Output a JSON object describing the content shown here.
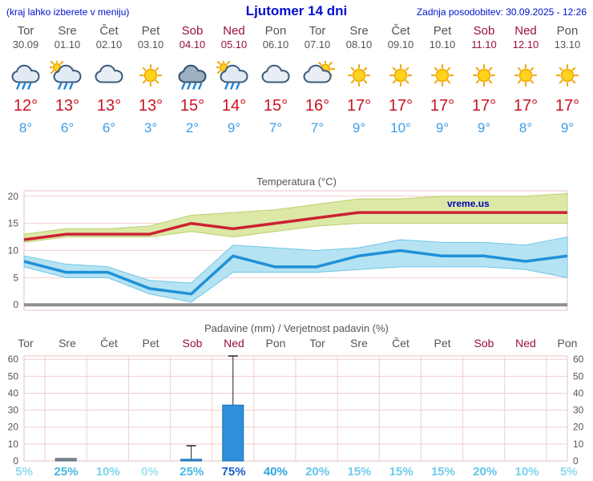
{
  "header": {
    "left_hint": "(kraj lahko izberete v meniju)",
    "title": "Ljutomer 14 dni",
    "last_update": "Zadnja posodobitev: 30.09.2025 - 12:26"
  },
  "colors": {
    "link_blue": "#0011cc",
    "weekday": "#555555",
    "weekend": "#991040",
    "tmax": "#cc1122",
    "tmin": "#3d9de8",
    "bar_blue": "#2e8fdd"
  },
  "days": [
    {
      "name": "Tor",
      "date": "30.09",
      "weekend": false,
      "icon": "rain",
      "tmax": "12°",
      "tmin": "8°"
    },
    {
      "name": "Sre",
      "date": "01.10",
      "weekend": false,
      "icon": "sun-rain",
      "tmax": "13°",
      "tmin": "6°"
    },
    {
      "name": "Čet",
      "date": "02.10",
      "weekend": false,
      "icon": "cloudy",
      "tmax": "13°",
      "tmin": "6°"
    },
    {
      "name": "Pet",
      "date": "03.10",
      "weekend": false,
      "icon": "sunny",
      "tmax": "13°",
      "tmin": "3°"
    },
    {
      "name": "Sob",
      "date": "04.10",
      "weekend": true,
      "icon": "heavy-rain",
      "tmax": "15°",
      "tmin": "2°"
    },
    {
      "name": "Ned",
      "date": "05.10",
      "weekend": true,
      "icon": "sun-rain",
      "tmax": "14°",
      "tmin": "9°"
    },
    {
      "name": "Pon",
      "date": "06.10",
      "weekend": false,
      "icon": "cloudy",
      "tmax": "15°",
      "tmin": "7°"
    },
    {
      "name": "Tor",
      "date": "07.10",
      "weekend": false,
      "icon": "partly-cloudy",
      "tmax": "16°",
      "tmin": "7°"
    },
    {
      "name": "Sre",
      "date": "08.10",
      "weekend": false,
      "icon": "sunny",
      "tmax": "17°",
      "tmin": "9°"
    },
    {
      "name": "Čet",
      "date": "09.10",
      "weekend": false,
      "icon": "sunny",
      "tmax": "17°",
      "tmin": "10°"
    },
    {
      "name": "Pet",
      "date": "10.10",
      "weekend": false,
      "icon": "sunny",
      "tmax": "17°",
      "tmin": "9°"
    },
    {
      "name": "Sob",
      "date": "11.10",
      "weekend": true,
      "icon": "sunny",
      "tmax": "17°",
      "tmin": "9°"
    },
    {
      "name": "Ned",
      "date": "12.10",
      "weekend": true,
      "icon": "sunny",
      "tmax": "17°",
      "tmin": "8°"
    },
    {
      "name": "Pon",
      "date": "13.10",
      "weekend": false,
      "icon": "sunny",
      "tmax": "17°",
      "tmin": "9°"
    }
  ],
  "chart_data": [
    {
      "type": "line",
      "title": "Temperatura (°C)",
      "x_categories": [
        "Tor 30.09",
        "Sre 01.10",
        "Čet 02.10",
        "Pet 03.10",
        "Sob 04.10",
        "Ned 05.10",
        "Pon 06.10",
        "Tor 07.10",
        "Sre 08.10",
        "Čet 09.10",
        "Pet 10.10",
        "Sob 11.10",
        "Ned 12.10",
        "Pon 13.10"
      ],
      "ylim": [
        -1,
        21
      ],
      "yticks": [
        0,
        5,
        10,
        15,
        20
      ],
      "grid": true,
      "grid_color": "#f3cdcd",
      "border_color": "#e9c0c0",
      "baseline_color": "#8f8f8f",
      "watermark": "vreme.us",
      "series": [
        {
          "name": "tmax",
          "color": "#cc2233",
          "values": [
            12,
            13,
            13,
            13,
            15,
            14,
            15,
            16,
            17,
            17,
            17,
            17,
            17,
            17
          ]
        },
        {
          "name": "tmin",
          "color": "#2090d8",
          "values": [
            8,
            6,
            6,
            3,
            2,
            9,
            7,
            7,
            9,
            10,
            9,
            9,
            8,
            9
          ]
        },
        {
          "name": "tmax_band_upper",
          "fill": "#dce9a6",
          "stroke": "#b9cf6e",
          "values": [
            13,
            14,
            14,
            14.5,
            16.5,
            17,
            17.5,
            18.5,
            19.5,
            19.5,
            20,
            20,
            20,
            20.5
          ]
        },
        {
          "name": "tmax_band_lower",
          "values": [
            11.5,
            12.5,
            12.5,
            12.5,
            13.5,
            12.5,
            13.5,
            14.5,
            15,
            15,
            15,
            15,
            15,
            15
          ]
        },
        {
          "name": "tmin_band_upper",
          "fill": "#b5e3f3",
          "stroke": "#6fc6e8",
          "values": [
            9,
            7.5,
            7,
            4.5,
            4,
            11,
            10.5,
            10,
            10.5,
            12,
            11.5,
            11.5,
            11,
            12.5
          ]
        },
        {
          "name": "tmin_band_lower",
          "values": [
            7,
            5,
            5,
            2,
            0.5,
            6,
            6,
            6,
            6.5,
            7,
            7,
            7,
            6.5,
            5
          ]
        }
      ]
    },
    {
      "type": "bar",
      "title": "Padavine (mm) / Verjetnost padavin (%)",
      "ylim": [
        0,
        62
      ],
      "yticks": [
        0,
        10,
        20,
        30,
        40,
        50,
        60
      ],
      "grid": true,
      "grid_color": "#f3cdcd",
      "border_color": "#e9c0c0",
      "categories": [
        {
          "label": "Tor",
          "weekend": false
        },
        {
          "label": "Sre",
          "weekend": false
        },
        {
          "label": "Čet",
          "weekend": false
        },
        {
          "label": "Pet",
          "weekend": false
        },
        {
          "label": "Sob",
          "weekend": true
        },
        {
          "label": "Ned",
          "weekend": true
        },
        {
          "label": "Pon",
          "weekend": false
        },
        {
          "label": "Tor",
          "weekend": false
        },
        {
          "label": "Sre",
          "weekend": false
        },
        {
          "label": "Čet",
          "weekend": false
        },
        {
          "label": "Pet",
          "weekend": false
        },
        {
          "label": "Sob",
          "weekend": true
        },
        {
          "label": "Ned",
          "weekend": true
        },
        {
          "label": "Pon",
          "weekend": false
        }
      ],
      "bars": [
        {
          "day_index": 1,
          "value_mm": 1.5,
          "color": "#7d8a96",
          "stroke": "#5a6570"
        },
        {
          "day_index": 4,
          "value_mm": 1,
          "whisker_max_mm": 9,
          "color": "#2e8fdd",
          "stroke": "#1a6ab0"
        },
        {
          "day_index": 5,
          "value_mm": 33,
          "whisker_max_mm": 62,
          "color": "#2e8fdd",
          "stroke": "#1a6ab0"
        }
      ],
      "probabilities": [
        {
          "label": "5%",
          "color": "#8fd9f0"
        },
        {
          "label": "25%",
          "color": "#49b6e2"
        },
        {
          "label": "10%",
          "color": "#7bd2ee"
        },
        {
          "label": "0%",
          "color": "#a0e0f4"
        },
        {
          "label": "25%",
          "color": "#49b6e2"
        },
        {
          "label": "75%",
          "color": "#1a5fc8"
        },
        {
          "label": "40%",
          "color": "#2fa3da"
        },
        {
          "label": "20%",
          "color": "#61c6e8"
        },
        {
          "label": "15%",
          "color": "#6fcceb"
        },
        {
          "label": "15%",
          "color": "#6fcceb"
        },
        {
          "label": "15%",
          "color": "#6fcceb"
        },
        {
          "label": "20%",
          "color": "#61c6e8"
        },
        {
          "label": "10%",
          "color": "#7bd2ee"
        },
        {
          "label": "5%",
          "color": "#8fd9f0"
        }
      ]
    }
  ]
}
